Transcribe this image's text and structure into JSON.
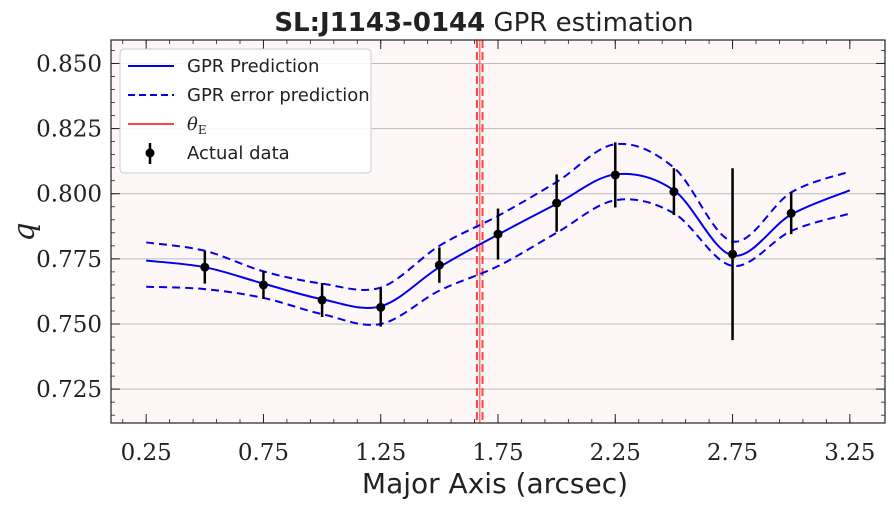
{
  "chart_data": {
    "type": "line",
    "title_bold": "SL:J1143-0144",
    "title_rest": " GPR estimation",
    "xlabel": "Major Axis (arcsec)",
    "ylabel": "q",
    "xlim": [
      0.1,
      3.4
    ],
    "ylim": [
      0.712,
      0.859
    ],
    "xticks": [
      0.25,
      0.75,
      1.25,
      1.75,
      2.25,
      2.75,
      3.25
    ],
    "xtick_labels": [
      "0.25",
      "0.75",
      "1.25",
      "1.75",
      "2.25",
      "2.75",
      "3.25"
    ],
    "yticks": [
      0.725,
      0.75,
      0.775,
      0.8,
      0.825,
      0.85
    ],
    "ytick_labels": [
      "0.725",
      "0.750",
      "0.775",
      "0.800",
      "0.825",
      "0.850"
    ],
    "grid": "horizontal",
    "legend_position": "top-left",
    "background_color": "#fdf8f7",
    "series": [
      {
        "name": "GPR Prediction",
        "style": "solid",
        "color": "#0000ee",
        "x": [
          0.25,
          0.5,
          0.75,
          1.0,
          1.25,
          1.5,
          1.75,
          2.0,
          2.25,
          2.5,
          2.75,
          3.0,
          3.25
        ],
        "y": [
          0.7743,
          0.7718,
          0.7655,
          0.7595,
          0.7568,
          0.7718,
          0.7843,
          0.7961,
          0.8074,
          0.8013,
          0.7763,
          0.792,
          0.8013
        ]
      },
      {
        "name": "GPR error prediction",
        "style": "dashed",
        "color": "#0000ee",
        "x": [
          0.25,
          0.5,
          0.75,
          1.0,
          1.25,
          1.5,
          1.75,
          2.0,
          2.25,
          2.5,
          2.75,
          3.0,
          3.25
        ],
        "y": [
          0.7813,
          0.7781,
          0.7702,
          0.7655,
          0.764,
          0.78,
          0.7915,
          0.8045,
          0.819,
          0.81,
          0.7817,
          0.8005,
          0.8085
        ]
      },
      {
        "style": "dashed",
        "color": "#0000ee",
        "x": [
          0.25,
          0.5,
          0.75,
          1.0,
          1.25,
          1.5,
          1.75,
          2.0,
          2.25,
          2.5,
          2.75,
          3.0,
          3.25
        ],
        "y": [
          0.7643,
          0.7634,
          0.76,
          0.7538,
          0.75,
          0.7628,
          0.7722,
          0.785,
          0.7975,
          0.7925,
          0.7723,
          0.7857,
          0.7924
        ]
      }
    ],
    "theta_e": {
      "name": "θ_E",
      "label_main": "θ",
      "label_sub": "E",
      "x": 1.672,
      "band": [
        1.66,
        1.684
      ],
      "color": "#ff4444"
    },
    "actual_data": {
      "name": "Actual data",
      "color": "#000000",
      "x": [
        0.5,
        0.75,
        1.0,
        1.25,
        1.5,
        1.75,
        2.0,
        2.25,
        2.5,
        2.75,
        3.0
      ],
      "y": [
        0.7718,
        0.765,
        0.7592,
        0.7564,
        0.7726,
        0.7845,
        0.7964,
        0.8072,
        0.8008,
        0.7768,
        0.7925
      ],
      "err": [
        0.0063,
        0.0054,
        0.0065,
        0.0074,
        0.0068,
        0.0098,
        0.011,
        0.0125,
        0.009,
        0.033,
        0.008
      ]
    }
  }
}
